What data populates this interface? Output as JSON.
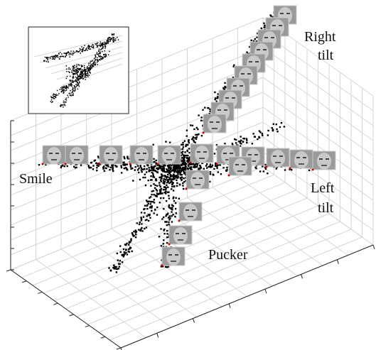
{
  "figure": {
    "labels": {
      "right_tilt": [
        "Right",
        "tilt"
      ],
      "smile": "Smile",
      "left_tilt": [
        "Left",
        "tilt"
      ],
      "pucker": "Pucker"
    }
  }
}
